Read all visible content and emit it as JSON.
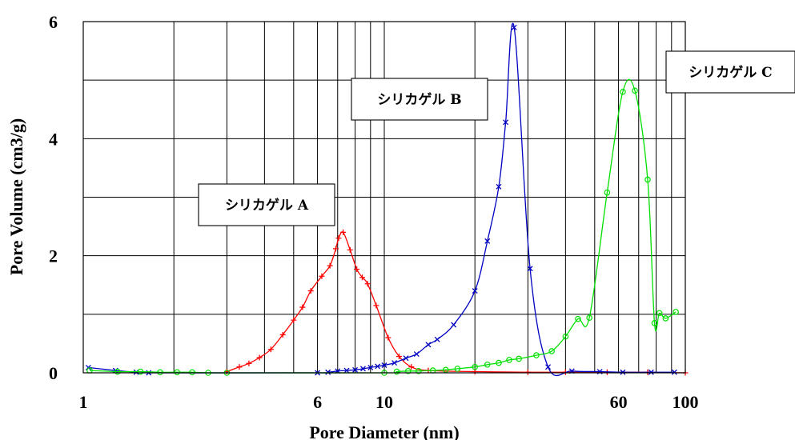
{
  "chart_data": {
    "type": "line",
    "xscale": "log",
    "xlim": [
      1,
      100
    ],
    "ylim": [
      0,
      6
    ],
    "grid": true,
    "xlabel": "Pore Diameter (nm)",
    "ylabel": "Pore Volume (cm3/g)",
    "x_ticks": [
      1,
      6,
      10,
      60,
      100
    ],
    "x_tick_labels": [
      "1",
      "6",
      "10",
      "60",
      "100"
    ],
    "y_ticks": [
      0,
      2,
      4,
      6
    ],
    "y_tick_labels": [
      "0",
      "2",
      "4",
      "6"
    ],
    "annotations": [
      {
        "text": "シリカゲル A",
        "series_index": 0
      },
      {
        "text": "シリカゲル B",
        "series_index": 1
      },
      {
        "text": "シリカゲル C",
        "series_index": 2
      }
    ],
    "series": [
      {
        "name": "シリカゲル A",
        "color": "#ff0000",
        "marker": "plus",
        "points": [
          [
            3.0,
            0.02
          ],
          [
            3.3,
            0.1
          ],
          [
            3.55,
            0.16
          ],
          [
            3.85,
            0.26
          ],
          [
            4.2,
            0.4
          ],
          [
            4.6,
            0.65
          ],
          [
            5.0,
            0.9
          ],
          [
            5.35,
            1.12
          ],
          [
            5.7,
            1.4
          ],
          [
            6.2,
            1.65
          ],
          [
            6.6,
            1.83
          ],
          [
            6.9,
            2.12
          ],
          [
            7.05,
            2.3
          ],
          [
            7.3,
            2.4
          ],
          [
            7.7,
            2.1
          ],
          [
            8.1,
            1.77
          ],
          [
            8.45,
            1.63
          ],
          [
            8.8,
            1.52
          ],
          [
            9.4,
            1.15
          ],
          [
            10.3,
            0.6
          ],
          [
            11.2,
            0.28
          ],
          [
            12.3,
            0.1
          ],
          [
            14.0,
            0.04
          ],
          [
            20,
            0.02
          ],
          [
            30,
            0.01
          ],
          [
            40,
            0.01
          ],
          [
            55,
            0.01
          ],
          [
            75,
            0.01
          ],
          [
            100,
            0.0
          ]
        ]
      },
      {
        "name": "シリカゲル B",
        "color": "#0000c0",
        "marker": "x",
        "points": [
          [
            1.04,
            0.09
          ],
          [
            1.28,
            0.04
          ],
          [
            1.5,
            0.01
          ],
          [
            1.65,
            0.0
          ],
          [
            6.0,
            0.0
          ],
          [
            6.5,
            0.01
          ],
          [
            7.0,
            0.03
          ],
          [
            7.5,
            0.04
          ],
          [
            8.0,
            0.05
          ],
          [
            8.5,
            0.07
          ],
          [
            9.0,
            0.09
          ],
          [
            9.5,
            0.11
          ],
          [
            10.0,
            0.13
          ],
          [
            10.8,
            0.17
          ],
          [
            11.8,
            0.25
          ],
          [
            12.8,
            0.32
          ],
          [
            14.0,
            0.48
          ],
          [
            15.0,
            0.57
          ],
          [
            17.0,
            0.82
          ],
          [
            20.0,
            1.4
          ],
          [
            22.0,
            2.25
          ],
          [
            24.0,
            3.18
          ],
          [
            25.3,
            4.28
          ],
          [
            27.0,
            5.9
          ],
          [
            30.5,
            1.78
          ],
          [
            35.0,
            0.1
          ],
          [
            42.0,
            0.03
          ],
          [
            52.0,
            0.02
          ],
          [
            62.0,
            0.01
          ],
          [
            77.0,
            0.01
          ],
          [
            92.0,
            0.01
          ]
        ]
      },
      {
        "name": "シリカゲル C",
        "color": "#00e000",
        "marker": "circle",
        "points": [
          [
            1.05,
            0.04
          ],
          [
            1.3,
            0.02
          ],
          [
            1.55,
            0.02
          ],
          [
            1.8,
            0.01
          ],
          [
            2.05,
            0.01
          ],
          [
            2.3,
            0.01
          ],
          [
            2.6,
            0.0
          ],
          [
            3.0,
            0.0
          ],
          [
            10.0,
            0.0
          ],
          [
            11.0,
            0.02
          ],
          [
            12.0,
            0.03
          ],
          [
            13.0,
            0.03
          ],
          [
            14.5,
            0.04
          ],
          [
            16.0,
            0.05
          ],
          [
            17.5,
            0.07
          ],
          [
            20.0,
            0.1
          ],
          [
            22.0,
            0.14
          ],
          [
            24.0,
            0.17
          ],
          [
            26.0,
            0.22
          ],
          [
            28.0,
            0.24
          ],
          [
            32.0,
            0.3
          ],
          [
            36.0,
            0.37
          ],
          [
            40.0,
            0.62
          ],
          [
            44.0,
            0.92
          ],
          [
            48.0,
            0.94
          ],
          [
            55.0,
            3.08
          ],
          [
            62.0,
            4.8
          ],
          [
            68.0,
            4.82
          ],
          [
            75.0,
            3.3
          ],
          [
            79.0,
            0.85
          ],
          [
            82.0,
            1.02
          ],
          [
            86.0,
            0.93
          ],
          [
            93.0,
            1.04
          ]
        ]
      }
    ]
  }
}
